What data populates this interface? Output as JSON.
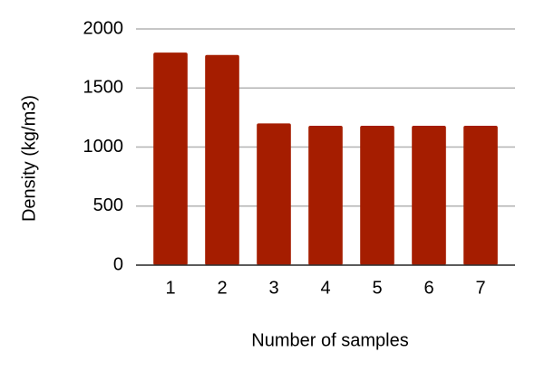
{
  "chart_data": {
    "type": "bar",
    "x_label": "Number of samples",
    "y_label": "Density (kg/m3)",
    "categories": [
      "1",
      "2",
      "3",
      "4",
      "5",
      "6",
      "7"
    ],
    "values": [
      1800,
      1780,
      1200,
      1180,
      1180,
      1180,
      1180
    ],
    "color": "#a51d00",
    "ylim": [
      0,
      2000
    ],
    "yticks": [
      0,
      500,
      1000,
      1500,
      2000
    ],
    "grid": true
  }
}
